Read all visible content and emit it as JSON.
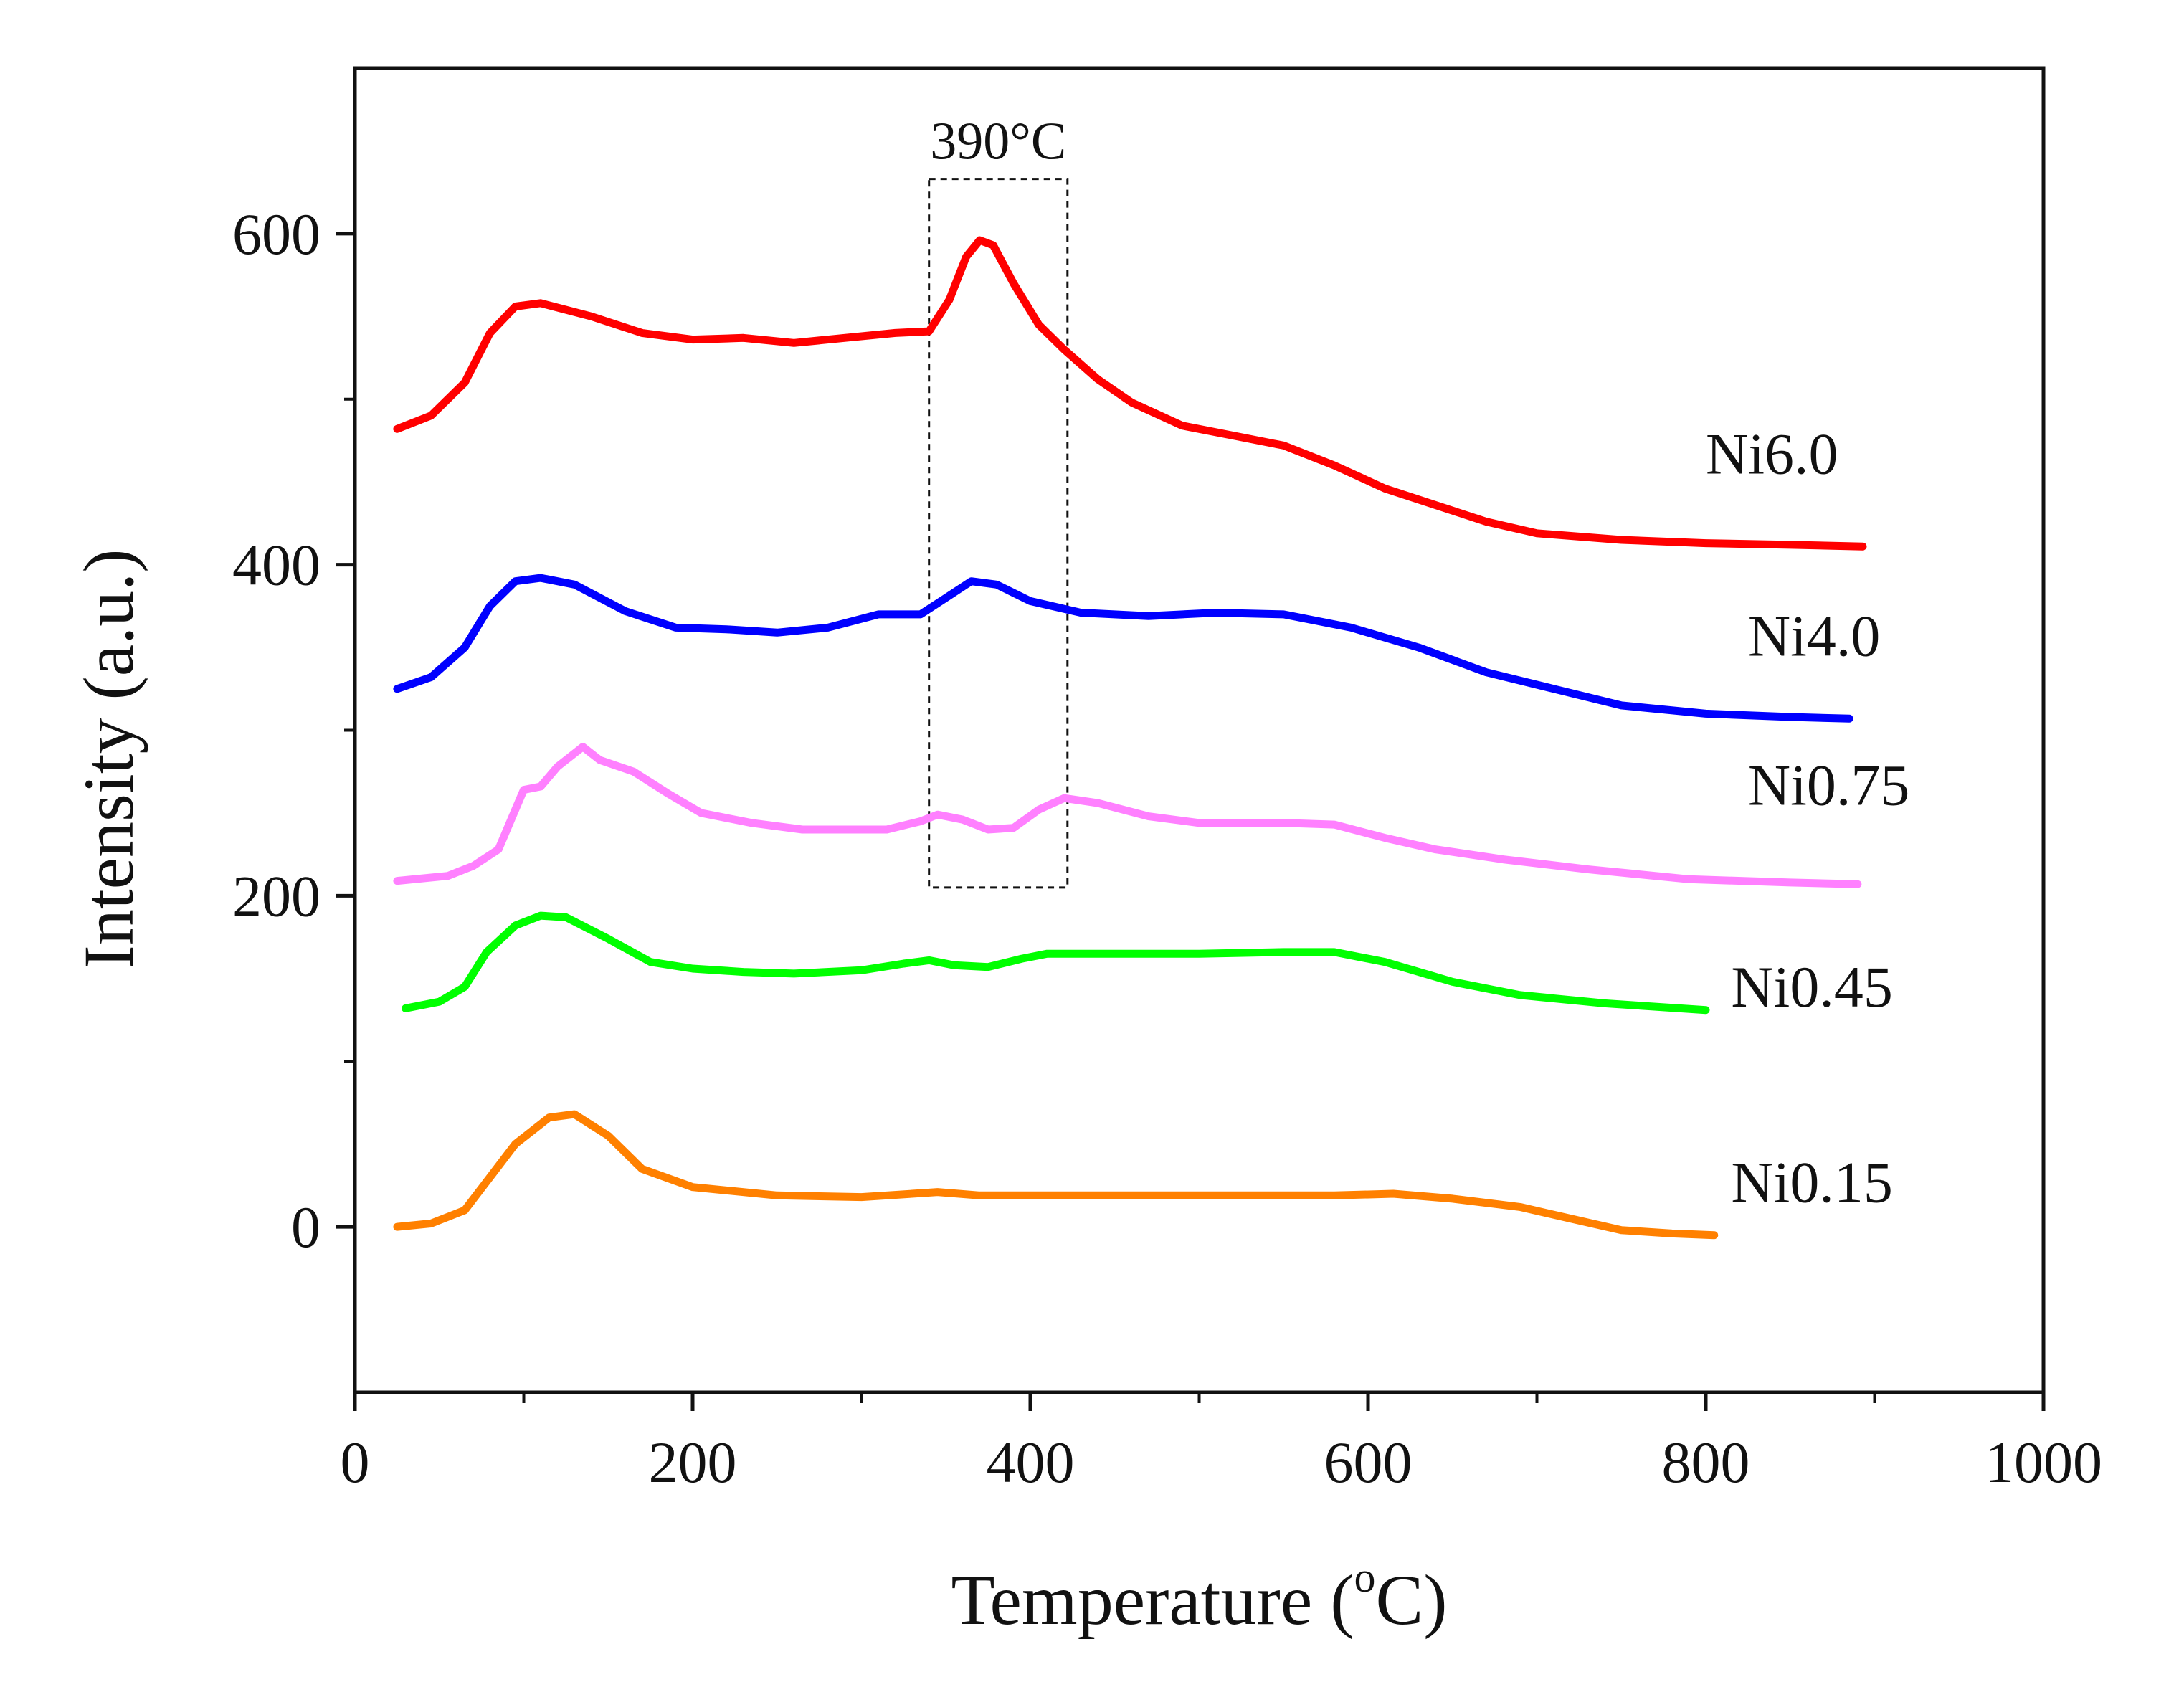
{
  "chart_data": {
    "type": "line",
    "title": "",
    "xlabel": "Temperature (",
    "xlabel_sup": "o",
    "xlabel_suffix": "C)",
    "ylabel": "Intensity (a.u.)",
    "xlim": [
      0,
      1000
    ],
    "ylim": [
      -100,
      700
    ],
    "x_ticks": [
      0,
      200,
      400,
      600,
      800,
      1000
    ],
    "x_tick_labels": [
      "0",
      "200",
      "400",
      "600",
      "800",
      "1000"
    ],
    "x_minor_ticks": [
      100,
      300,
      500,
      700,
      900
    ],
    "y_ticks": [
      0,
      200,
      400,
      600
    ],
    "y_tick_labels": [
      "0",
      "200",
      "400",
      "600"
    ],
    "y_minor_ticks": [
      100,
      300,
      500
    ],
    "grid": false,
    "annotation": {
      "label": "390°C",
      "x_range": [
        340,
        422
      ],
      "y_range": [
        205,
        633
      ]
    },
    "series": [
      {
        "name": "Ni6.0",
        "color": "#ff0000",
        "label_anchor": [
          800,
          455
        ],
        "points": [
          [
            25,
            482
          ],
          [
            45,
            490
          ],
          [
            65,
            510
          ],
          [
            80,
            540
          ],
          [
            95,
            556
          ],
          [
            110,
            558
          ],
          [
            140,
            550
          ],
          [
            170,
            540
          ],
          [
            200,
            536
          ],
          [
            230,
            537
          ],
          [
            260,
            534
          ],
          [
            290,
            537
          ],
          [
            320,
            540
          ],
          [
            340,
            541
          ],
          [
            352,
            560
          ],
          [
            362,
            586
          ],
          [
            370,
            596
          ],
          [
            378,
            593
          ],
          [
            390,
            570
          ],
          [
            405,
            545
          ],
          [
            420,
            530
          ],
          [
            440,
            512
          ],
          [
            460,
            498
          ],
          [
            490,
            484
          ],
          [
            520,
            478
          ],
          [
            550,
            472
          ],
          [
            580,
            460
          ],
          [
            610,
            446
          ],
          [
            640,
            436
          ],
          [
            670,
            426
          ],
          [
            700,
            419
          ],
          [
            750,
            415
          ],
          [
            800,
            413
          ],
          [
            850,
            412
          ],
          [
            893,
            411
          ]
        ]
      },
      {
        "name": "Ni4.0",
        "color": "#0000ff",
        "label_anchor": [
          825,
          345
        ],
        "points": [
          [
            25,
            325
          ],
          [
            45,
            332
          ],
          [
            65,
            350
          ],
          [
            80,
            375
          ],
          [
            95,
            390
          ],
          [
            110,
            392
          ],
          [
            130,
            388
          ],
          [
            160,
            372
          ],
          [
            190,
            362
          ],
          [
            220,
            361
          ],
          [
            250,
            359
          ],
          [
            280,
            362
          ],
          [
            310,
            370
          ],
          [
            335,
            370
          ],
          [
            350,
            380
          ],
          [
            365,
            390
          ],
          [
            380,
            388
          ],
          [
            400,
            378
          ],
          [
            430,
            371
          ],
          [
            470,
            369
          ],
          [
            510,
            371
          ],
          [
            550,
            370
          ],
          [
            590,
            362
          ],
          [
            630,
            350
          ],
          [
            670,
            335
          ],
          [
            710,
            325
          ],
          [
            750,
            315
          ],
          [
            800,
            310
          ],
          [
            850,
            308
          ],
          [
            885,
            307
          ]
        ]
      },
      {
        "name": "Ni0.75",
        "color": "#ff80ff",
        "label_anchor": [
          825,
          255
        ],
        "points": [
          [
            25,
            209
          ],
          [
            55,
            212
          ],
          [
            70,
            218
          ],
          [
            85,
            228
          ],
          [
            95,
            252
          ],
          [
            100,
            264
          ],
          [
            110,
            266
          ],
          [
            120,
            278
          ],
          [
            135,
            290
          ],
          [
            145,
            282
          ],
          [
            165,
            275
          ],
          [
            185,
            262
          ],
          [
            205,
            250
          ],
          [
            235,
            244
          ],
          [
            265,
            240
          ],
          [
            295,
            240
          ],
          [
            315,
            240
          ],
          [
            335,
            245
          ],
          [
            345,
            249
          ],
          [
            360,
            246
          ],
          [
            375,
            240
          ],
          [
            390,
            241
          ],
          [
            405,
            252
          ],
          [
            420,
            259
          ],
          [
            440,
            256
          ],
          [
            470,
            248
          ],
          [
            500,
            244
          ],
          [
            550,
            244
          ],
          [
            580,
            243
          ],
          [
            610,
            235
          ],
          [
            640,
            228
          ],
          [
            680,
            222
          ],
          [
            730,
            216
          ],
          [
            790,
            210
          ],
          [
            850,
            208
          ],
          [
            890,
            207
          ]
        ]
      },
      {
        "name": "Ni0.45",
        "color": "#00ff00",
        "label_anchor": [
          815,
          133
        ],
        "points": [
          [
            30,
            132
          ],
          [
            50,
            136
          ],
          [
            65,
            145
          ],
          [
            78,
            166
          ],
          [
            95,
            182
          ],
          [
            110,
            188
          ],
          [
            125,
            187
          ],
          [
            150,
            174
          ],
          [
            175,
            160
          ],
          [
            200,
            156
          ],
          [
            230,
            154
          ],
          [
            260,
            153
          ],
          [
            300,
            155
          ],
          [
            325,
            159
          ],
          [
            340,
            161
          ],
          [
            355,
            158
          ],
          [
            375,
            157
          ],
          [
            395,
            162
          ],
          [
            410,
            165
          ],
          [
            450,
            165
          ],
          [
            500,
            165
          ],
          [
            550,
            166
          ],
          [
            580,
            166
          ],
          [
            610,
            160
          ],
          [
            650,
            148
          ],
          [
            690,
            140
          ],
          [
            740,
            135
          ],
          [
            800,
            131
          ]
        ]
      },
      {
        "name": "Ni0.15",
        "color": "#ff8000",
        "label_anchor": [
          815,
          15
        ],
        "points": [
          [
            25,
            0
          ],
          [
            45,
            2
          ],
          [
            65,
            10
          ],
          [
            80,
            30
          ],
          [
            95,
            50
          ],
          [
            115,
            66
          ],
          [
            130,
            68
          ],
          [
            150,
            55
          ],
          [
            170,
            35
          ],
          [
            200,
            24
          ],
          [
            250,
            19
          ],
          [
            300,
            18
          ],
          [
            330,
            20
          ],
          [
            345,
            21
          ],
          [
            370,
            19
          ],
          [
            400,
            19
          ],
          [
            450,
            19
          ],
          [
            500,
            19
          ],
          [
            550,
            19
          ],
          [
            580,
            19
          ],
          [
            615,
            20
          ],
          [
            650,
            17
          ],
          [
            690,
            12
          ],
          [
            720,
            5
          ],
          [
            750,
            -2
          ],
          [
            780,
            -4
          ],
          [
            805,
            -5
          ]
        ]
      }
    ]
  }
}
